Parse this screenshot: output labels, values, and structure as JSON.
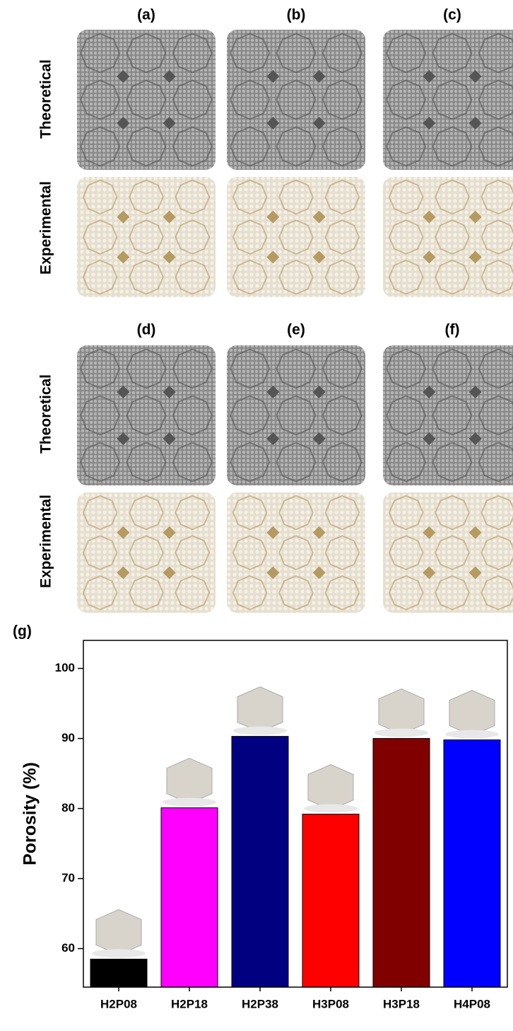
{
  "panels": {
    "labels": [
      "(a)",
      "(b)",
      "(c)",
      "(d)",
      "(e)",
      "(f)"
    ],
    "row_labels": [
      "Theoretical",
      "Experimental"
    ]
  },
  "chart_data": {
    "type": "bar",
    "panel_label": "(g)",
    "ylabel": "Porosity (%)",
    "categories": [
      "H2P08",
      "H2P18",
      "H2P38",
      "H3P08",
      "H3P18",
      "H4P08"
    ],
    "values": [
      58.5,
      80.1,
      90.3,
      79.2,
      90.0,
      89.8
    ],
    "colors": [
      "#000000",
      "#ff00ff",
      "#000080",
      "#ff0000",
      "#800000",
      "#0000ff"
    ],
    "ylim": [
      54.5,
      104
    ],
    "yticks": [
      60,
      70,
      80,
      90,
      100
    ]
  }
}
